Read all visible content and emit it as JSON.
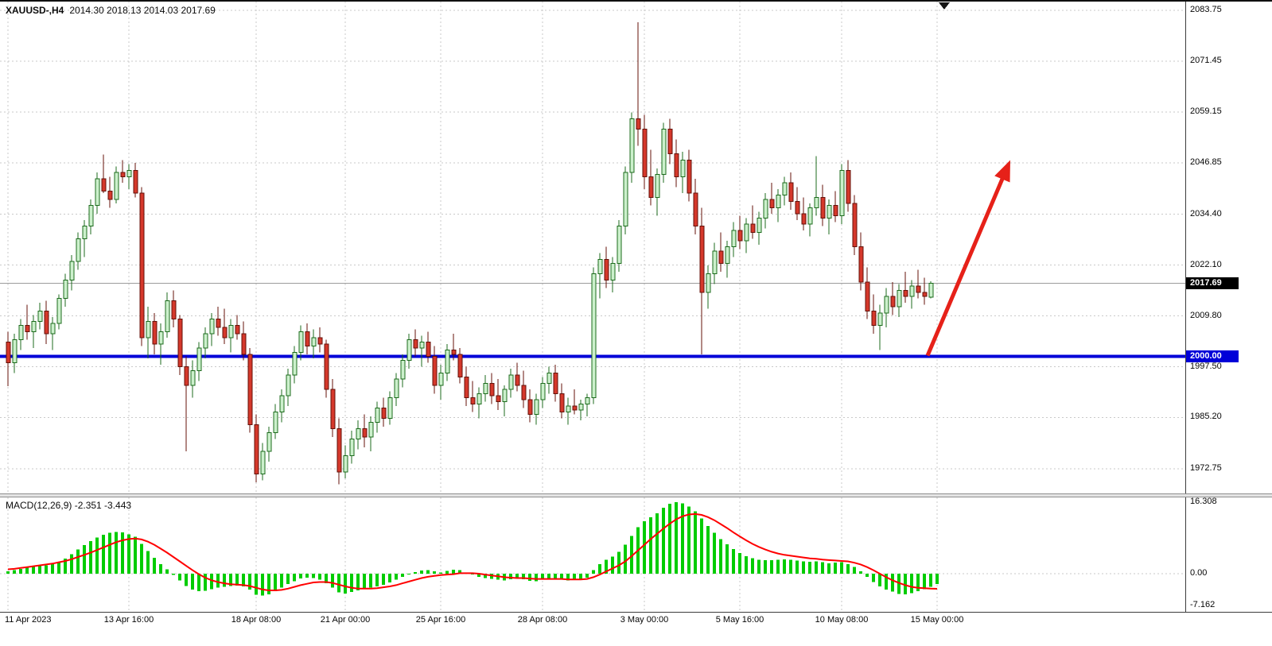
{
  "header": {
    "symbol_timeframe": "XAUUSD-,H4",
    "ohlc": "2014.30 2018.13 2014.03 2017.69"
  },
  "price_axis": {
    "labels": [
      "2083.75",
      "2071.45",
      "2059.15",
      "2046.85",
      "2034.40",
      "2022.10",
      "2009.80",
      "1997.50",
      "1985.20",
      "1972.75"
    ]
  },
  "price_tags": {
    "current": "2017.69",
    "level": "2000.00"
  },
  "time_axis": {
    "ticks": [
      {
        "label": "11 Apr 2023",
        "i": 0
      },
      {
        "label": "13 Apr 16:00",
        "i": 19
      },
      {
        "label": "18 Apr 08:00",
        "i": 39
      },
      {
        "label": "21 Apr 00:00",
        "i": 53
      },
      {
        "label": "25 Apr 16:00",
        "i": 68
      },
      {
        "label": "28 Apr 08:00",
        "i": 84
      },
      {
        "label": "3 May 00:00",
        "i": 100
      },
      {
        "label": "5 May 16:00",
        "i": 115
      },
      {
        "label": "10 May 08:00",
        "i": 131
      },
      {
        "label": "15 May 00:00",
        "i": 146
      }
    ]
  },
  "macd_panel": {
    "label": "MACD(12,26,9) -2.351 -3.443",
    "axis_labels": [
      {
        "label": "16.308",
        "v": 16.308
      },
      {
        "label": "0.00",
        "v": 0
      },
      {
        "label": "-7.162",
        "v": -7.162
      }
    ]
  },
  "colors": {
    "up_fill": "#ccf0cc",
    "up_border": "#1c6b1c",
    "down_fill": "#d5382b",
    "down_border": "#641109",
    "grid": "#c9c9c9",
    "level_line": "#0000d8",
    "current_price_line": "#9b9b9b",
    "macd_bar": "#00cc00",
    "macd_signal": "#ff0000",
    "arrow": "#e62119",
    "tag_current_bg": "#000000",
    "tag_level_bg": "#0000d8"
  },
  "chart_data": {
    "type": "candlestick",
    "symbol": "XAUUSD",
    "timeframe": "H4",
    "title": "XAUUSD-,H4",
    "ohlc_display": {
      "open": "2014.30",
      "high": "2018.13",
      "low": "2014.03",
      "close": "2017.69"
    },
    "y_range": [
      1969,
      2084
    ],
    "current_price": 2017.69,
    "support_line_price": 2000.0,
    "candles_ohlc": [
      [
        2003.5,
        2006.0,
        1992.8,
        1998.5
      ],
      [
        1998.5,
        2005.5,
        1996.0,
        2004.0
      ],
      [
        2004.0,
        2009.0,
        2001.5,
        2007.5
      ],
      [
        2007.5,
        2012.5,
        2004.0,
        2006.0
      ],
      [
        2006.0,
        2010.0,
        2002.0,
        2008.5
      ],
      [
        2008.5,
        2013.0,
        2006.5,
        2011.0
      ],
      [
        2011.0,
        2013.5,
        2003.0,
        2005.5
      ],
      [
        2005.5,
        2009.5,
        2001.5,
        2008.0
      ],
      [
        2008.0,
        2015.0,
        2006.5,
        2014.0
      ],
      [
        2014.0,
        2020.0,
        2012.0,
        2018.5
      ],
      [
        2018.5,
        2024.5,
        2016.0,
        2023.0
      ],
      [
        2023.0,
        2030.0,
        2021.0,
        2028.5
      ],
      [
        2028.5,
        2033.0,
        2024.0,
        2031.5
      ],
      [
        2031.5,
        2038.0,
        2029.5,
        2036.5
      ],
      [
        2036.5,
        2044.5,
        2034.5,
        2043.0
      ],
      [
        2043.0,
        2048.8,
        2039.5,
        2040.0
      ],
      [
        2040.0,
        2043.5,
        2036.0,
        2038.0
      ],
      [
        2038.0,
        2046.0,
        2037.0,
        2044.5
      ],
      [
        2044.5,
        2047.5,
        2042.0,
        2043.5
      ],
      [
        2043.5,
        2046.5,
        2040.5,
        2045.0
      ],
      [
        2045.0,
        2046.8,
        2038.5,
        2039.5
      ],
      [
        2039.5,
        2041.0,
        2002.5,
        2004.5
      ],
      [
        2004.5,
        2012.0,
        1999.5,
        2008.5
      ],
      [
        2008.5,
        2010.5,
        2000.5,
        2003.0
      ],
      [
        2003.0,
        2008.0,
        1998.0,
        2006.0
      ],
      [
        2006.0,
        2015.5,
        2004.5,
        2013.5
      ],
      [
        2013.5,
        2016.0,
        2007.0,
        2009.0
      ],
      [
        2009.0,
        2010.0,
        1995.5,
        1997.5
      ],
      [
        1997.5,
        2000.0,
        1977.0,
        1993.0
      ],
      [
        1993.0,
        1999.0,
        1990.0,
        1996.5
      ],
      [
        1996.5,
        2003.5,
        1994.0,
        2002.0
      ],
      [
        2002.0,
        2007.0,
        1999.5,
        2005.5
      ],
      [
        2005.5,
        2010.5,
        2002.5,
        2009.0
      ],
      [
        2009.0,
        2012.0,
        2005.0,
        2007.0
      ],
      [
        2007.0,
        2011.5,
        2003.0,
        2004.5
      ],
      [
        2004.5,
        2009.0,
        2001.0,
        2007.5
      ],
      [
        2007.5,
        2010.0,
        2004.0,
        2005.5
      ],
      [
        2005.5,
        2008.5,
        1999.0,
        2000.5
      ],
      [
        2000.5,
        2002.0,
        1981.5,
        1983.5
      ],
      [
        1983.5,
        1986.0,
        1969.5,
        1971.5
      ],
      [
        1971.5,
        1979.0,
        1970.0,
        1977.0
      ],
      [
        1977.0,
        1983.0,
        1974.5,
        1981.5
      ],
      [
        1981.5,
        1988.5,
        1980.0,
        1986.5
      ],
      [
        1986.5,
        1992.0,
        1984.0,
        1990.5
      ],
      [
        1990.5,
        1997.0,
        1988.0,
        1995.5
      ],
      [
        1995.5,
        2002.5,
        1993.5,
        2001.0
      ],
      [
        2001.0,
        2007.5,
        1999.0,
        2006.0
      ],
      [
        2006.0,
        2008.0,
        2000.5,
        2002.5
      ],
      [
        2002.5,
        2006.5,
        1999.5,
        2004.5
      ],
      [
        2004.5,
        2007.0,
        2001.0,
        2003.0
      ],
      [
        2003.0,
        2004.0,
        1990.0,
        1992.0
      ],
      [
        1992.0,
        1994.5,
        1980.5,
        1982.5
      ],
      [
        1982.5,
        1985.0,
        1969.0,
        1972.0
      ],
      [
        1972.0,
        1978.5,
        1970.5,
        1976.0
      ],
      [
        1976.0,
        1982.0,
        1974.0,
        1980.0
      ],
      [
        1980.0,
        1984.5,
        1977.5,
        1982.5
      ],
      [
        1982.5,
        1986.0,
        1978.0,
        1980.5
      ],
      [
        1980.5,
        1985.5,
        1977.0,
        1984.0
      ],
      [
        1984.0,
        1989.0,
        1981.5,
        1987.5
      ],
      [
        1987.5,
        1990.0,
        1983.0,
        1985.0
      ],
      [
        1985.0,
        1991.5,
        1983.5,
        1990.0
      ],
      [
        1990.0,
        1996.0,
        1988.0,
        1994.5
      ],
      [
        1994.5,
        2000.5,
        1992.5,
        1999.0
      ],
      [
        1999.0,
        2005.5,
        1997.0,
        2004.0
      ],
      [
        2004.0,
        2006.5,
        2000.0,
        2002.0
      ],
      [
        2002.0,
        2005.0,
        1997.5,
        2003.5
      ],
      [
        2003.5,
        2006.0,
        1998.5,
        2000.0
      ],
      [
        2000.0,
        2002.5,
        1991.0,
        1993.0
      ],
      [
        1993.0,
        1998.0,
        1989.5,
        1996.0
      ],
      [
        1996.0,
        2003.0,
        1994.0,
        2001.5
      ],
      [
        2001.5,
        2005.5,
        1999.0,
        2000.5
      ],
      [
        2000.5,
        2002.0,
        1993.5,
        1995.0
      ],
      [
        1995.0,
        1997.5,
        1988.0,
        1990.0
      ],
      [
        1990.0,
        1994.0,
        1986.5,
        1988.5
      ],
      [
        1988.5,
        1992.5,
        1985.0,
        1991.0
      ],
      [
        1991.0,
        1995.5,
        1989.0,
        1993.5
      ],
      [
        1993.5,
        1996.0,
        1988.5,
        1990.5
      ],
      [
        1990.5,
        1994.5,
        1987.0,
        1989.0
      ],
      [
        1989.0,
        1993.0,
        1985.5,
        1992.0
      ],
      [
        1992.0,
        1997.0,
        1990.0,
        1995.5
      ],
      [
        1995.5,
        1998.5,
        1991.5,
        1993.0
      ],
      [
        1993.0,
        1996.5,
        1987.5,
        1989.5
      ],
      [
        1989.5,
        1992.0,
        1984.0,
        1986.0
      ],
      [
        1986.0,
        1991.0,
        1983.5,
        1989.5
      ],
      [
        1989.5,
        1995.0,
        1987.5,
        1993.5
      ],
      [
        1993.5,
        1997.5,
        1991.0,
        1996.0
      ],
      [
        1996.0,
        1998.0,
        1989.0,
        1991.0
      ],
      [
        1991.0,
        1993.5,
        1985.0,
        1986.5
      ],
      [
        1986.5,
        1990.0,
        1983.5,
        1988.0
      ],
      [
        1988.0,
        1992.0,
        1986.0,
        1987.0
      ],
      [
        1987.0,
        1989.5,
        1984.5,
        1988.5
      ],
      [
        1988.5,
        1991.0,
        1985.5,
        1990.0
      ],
      [
        1990.0,
        2021.5,
        1988.5,
        2020.0
      ],
      [
        2020.0,
        2025.0,
        2014.0,
        2023.5
      ],
      [
        2023.5,
        2026.5,
        2016.5,
        2018.5
      ],
      [
        2018.5,
        2024.0,
        2015.5,
        2022.5
      ],
      [
        2022.5,
        2033.0,
        2020.5,
        2031.5
      ],
      [
        2031.5,
        2046.0,
        2029.5,
        2044.5
      ],
      [
        2044.5,
        2059.0,
        2042.0,
        2057.5
      ],
      [
        2057.5,
        2080.9,
        2051.0,
        2055.0
      ],
      [
        2055.0,
        2058.5,
        2040.5,
        2043.5
      ],
      [
        2043.5,
        2050.0,
        2036.5,
        2038.5
      ],
      [
        2038.5,
        2045.5,
        2034.0,
        2044.0
      ],
      [
        2044.0,
        2056.5,
        2042.0,
        2055.0
      ],
      [
        2055.0,
        2057.5,
        2046.5,
        2049.0
      ],
      [
        2049.0,
        2052.5,
        2041.0,
        2043.5
      ],
      [
        2043.5,
        2049.5,
        2039.5,
        2047.5
      ],
      [
        2047.5,
        2050.0,
        2037.5,
        2039.5
      ],
      [
        2039.5,
        2043.0,
        2029.5,
        2031.5
      ],
      [
        2031.5,
        2036.0,
        2000.5,
        2015.5
      ],
      [
        2015.5,
        2022.0,
        2011.5,
        2020.0
      ],
      [
        2020.0,
        2027.5,
        2017.5,
        2025.5
      ],
      [
        2025.5,
        2030.0,
        2020.5,
        2022.5
      ],
      [
        2022.5,
        2028.0,
        2019.0,
        2026.5
      ],
      [
        2026.5,
        2032.5,
        2024.0,
        2030.5
      ],
      [
        2030.5,
        2034.0,
        2026.0,
        2028.0
      ],
      [
        2028.0,
        2033.5,
        2025.0,
        2032.0
      ],
      [
        2032.0,
        2036.5,
        2028.5,
        2030.0
      ],
      [
        2030.0,
        2035.0,
        2027.0,
        2033.5
      ],
      [
        2033.5,
        2039.5,
        2031.0,
        2038.0
      ],
      [
        2038.0,
        2042.0,
        2034.5,
        2036.0
      ],
      [
        2036.0,
        2040.5,
        2032.5,
        2039.0
      ],
      [
        2039.0,
        2043.5,
        2036.5,
        2042.0
      ],
      [
        2042.0,
        2044.5,
        2035.5,
        2037.5
      ],
      [
        2037.5,
        2041.0,
        2033.0,
        2034.5
      ],
      [
        2034.5,
        2038.5,
        2030.5,
        2032.0
      ],
      [
        2032.0,
        2037.0,
        2029.0,
        2036.0
      ],
      [
        2036.0,
        2048.5,
        2034.0,
        2038.5
      ],
      [
        2038.5,
        2041.5,
        2031.5,
        2033.5
      ],
      [
        2033.5,
        2038.0,
        2029.5,
        2036.5
      ],
      [
        2036.5,
        2040.0,
        2032.5,
        2034.0
      ],
      [
        2034.0,
        2046.5,
        2032.0,
        2045.0
      ],
      [
        2045.0,
        2047.5,
        2035.0,
        2037.0
      ],
      [
        2037.0,
        2039.0,
        2024.5,
        2026.5
      ],
      [
        2026.5,
        2030.0,
        2016.0,
        2018.0
      ],
      [
        2018.0,
        2021.5,
        2009.0,
        2011.0
      ],
      [
        2011.0,
        2015.0,
        2005.5,
        2007.5
      ],
      [
        2007.5,
        2012.5,
        2001.5,
        2010.5
      ],
      [
        2010.5,
        2016.5,
        2007.0,
        2014.5
      ],
      [
        2014.5,
        2018.0,
        2010.0,
        2012.0
      ],
      [
        2012.0,
        2017.5,
        2009.5,
        2016.0
      ],
      [
        2016.0,
        2020.5,
        2013.0,
        2014.5
      ],
      [
        2014.5,
        2018.5,
        2011.5,
        2017.0
      ],
      [
        2017.0,
        2021.0,
        2014.0,
        2015.5
      ],
      [
        2015.5,
        2019.0,
        2012.5,
        2014.5
      ],
      [
        2014.3,
        2018.13,
        2014.03,
        2017.69
      ]
    ],
    "annotations": [
      {
        "type": "arrow",
        "from": {
          "i": 144.5,
          "price": 2000.2
        },
        "to": {
          "i": 157.5,
          "price": 2047.5
        },
        "color": "#e62119"
      }
    ],
    "indicator": {
      "type": "macd_histogram",
      "name": "MACD(12,26,9)",
      "current": {
        "macd": -2.351,
        "signal": -3.443
      },
      "range": [
        -7.162,
        16.308
      ],
      "macd": [
        0.5,
        0.8,
        1.1,
        1.4,
        1.7,
        2.0,
        1.9,
        2.2,
        2.7,
        3.4,
        4.4,
        5.5,
        6.5,
        7.4,
        8.2,
        8.9,
        9.3,
        9.5,
        9.4,
        9.0,
        8.4,
        6.8,
        5.2,
        3.6,
        2.2,
        1.0,
        -0.3,
        -1.5,
        -2.8,
        -3.6,
        -4.0,
        -3.9,
        -3.5,
        -3.2,
        -3.0,
        -2.8,
        -2.7,
        -2.9,
        -3.6,
        -4.8,
        -5.0,
        -4.7,
        -4.0,
        -3.2,
        -2.4,
        -1.7,
        -1.1,
        -0.9,
        -1.0,
        -1.4,
        -2.2,
        -3.2,
        -4.3,
        -4.5,
        -4.2,
        -3.8,
        -3.5,
        -3.2,
        -2.9,
        -2.5,
        -2.0,
        -1.4,
        -0.7,
        0.0,
        0.4,
        0.7,
        0.8,
        0.5,
        0.3,
        0.6,
        0.9,
        0.8,
        0.3,
        -0.2,
        -0.7,
        -1.0,
        -1.2,
        -1.4,
        -1.5,
        -1.3,
        -1.1,
        -1.3,
        -1.6,
        -1.7,
        -1.4,
        -1.1,
        -1.2,
        -1.4,
        -1.5,
        -1.4,
        -1.2,
        -0.9,
        0.8,
        2.2,
        3.2,
        3.9,
        5.0,
        6.6,
        8.6,
        10.6,
        12.0,
        12.9,
        13.8,
        15.0,
        15.9,
        16.3,
        16.0,
        15.3,
        14.2,
        12.6,
        10.9,
        9.3,
        7.9,
        6.7,
        5.6,
        4.7,
        4.0,
        3.5,
        3.2,
        3.1,
        3.1,
        3.2,
        3.3,
        3.2,
        3.0,
        2.8,
        2.7,
        2.8,
        2.6,
        2.4,
        2.5,
        2.6,
        2.2,
        1.5,
        0.5,
        -0.7,
        -1.9,
        -2.9,
        -3.6,
        -4.1,
        -4.6,
        -4.7,
        -4.4,
        -4.0,
        -3.5,
        -3.0,
        -2.351
      ],
      "signal": [
        1.0,
        1.1,
        1.3,
        1.5,
        1.7,
        1.9,
        2.1,
        2.3,
        2.6,
        2.9,
        3.3,
        3.8,
        4.3,
        4.8,
        5.4,
        6.0,
        6.6,
        7.2,
        7.6,
        7.9,
        8.0,
        7.8,
        7.3,
        6.6,
        5.7,
        4.8,
        3.8,
        2.8,
        1.8,
        0.8,
        -0.1,
        -0.9,
        -1.5,
        -1.9,
        -2.2,
        -2.4,
        -2.5,
        -2.6,
        -2.8,
        -3.2,
        -3.6,
        -3.8,
        -3.8,
        -3.7,
        -3.4,
        -3.0,
        -2.6,
        -2.3,
        -2.0,
        -1.9,
        -1.9,
        -2.1,
        -2.5,
        -2.9,
        -3.2,
        -3.4,
        -3.4,
        -3.4,
        -3.3,
        -3.1,
        -2.9,
        -2.6,
        -2.2,
        -1.8,
        -1.4,
        -1.0,
        -0.7,
        -0.5,
        -0.3,
        -0.2,
        -0.1,
        0.1,
        0.1,
        0.1,
        0.0,
        -0.2,
        -0.4,
        -0.6,
        -0.8,
        -0.9,
        -1.0,
        -1.0,
        -1.1,
        -1.2,
        -1.2,
        -1.2,
        -1.2,
        -1.2,
        -1.3,
        -1.3,
        -1.3,
        -1.2,
        -0.8,
        -0.2,
        0.5,
        1.2,
        1.9,
        2.8,
        4.0,
        5.3,
        6.6,
        7.9,
        9.1,
        10.3,
        11.4,
        12.4,
        13.1,
        13.5,
        13.6,
        13.4,
        12.9,
        12.2,
        11.3,
        10.4,
        9.4,
        8.5,
        7.6,
        6.8,
        6.1,
        5.5,
        5.0,
        4.6,
        4.3,
        4.1,
        3.9,
        3.7,
        3.5,
        3.4,
        3.2,
        3.1,
        3.0,
        2.9,
        2.8,
        2.5,
        2.1,
        1.5,
        0.8,
        0.0,
        -0.8,
        -1.5,
        -2.1,
        -2.6,
        -3.0,
        -3.2,
        -3.3,
        -3.4,
        -3.443
      ]
    }
  }
}
